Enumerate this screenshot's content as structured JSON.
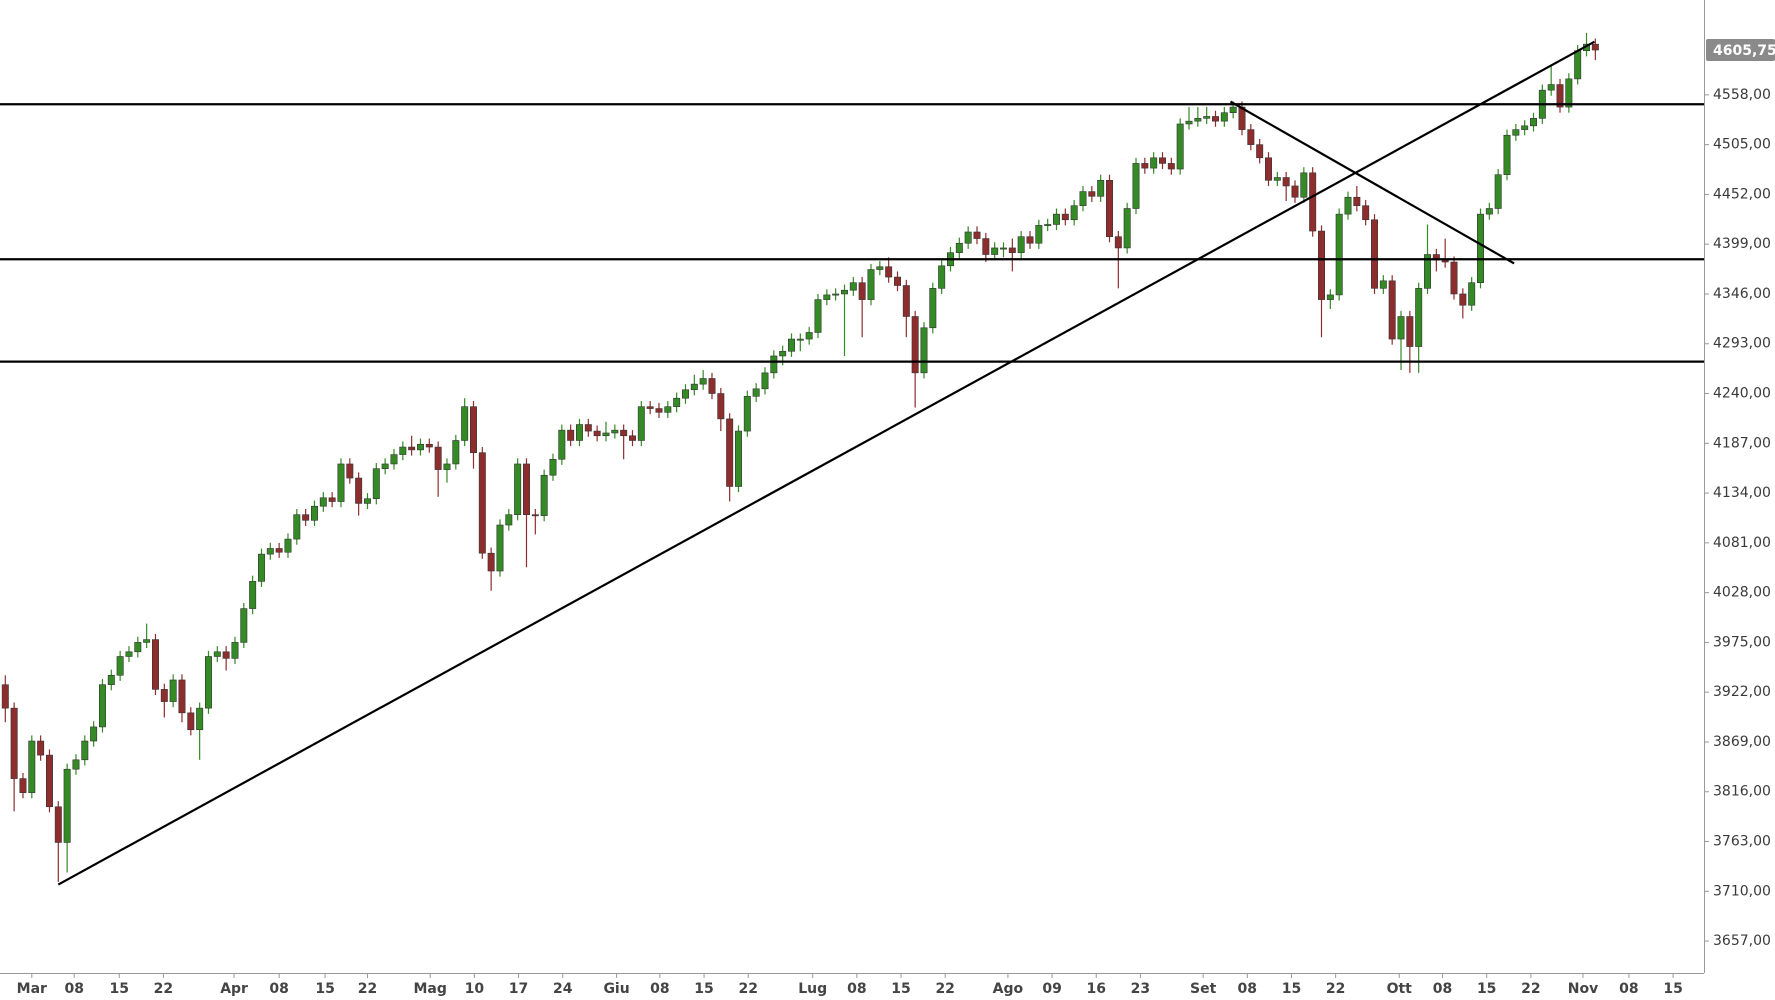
{
  "chart_data": {
    "type": "candlestick",
    "up_color": "#348a25",
    "down_color": "#8e2d2d",
    "line_color": "#000000",
    "open": [
      3930,
      3905,
      3830,
      3815,
      3870,
      3855,
      3800,
      3762,
      3840,
      3850,
      3870,
      3885,
      3930,
      3940,
      3960,
      3965,
      3975,
      3978,
      3925,
      3912,
      3935,
      3900,
      3882,
      3905,
      3960,
      3965,
      3958,
      3975,
      4011,
      4040,
      4069,
      4075,
      4071,
      4085,
      4111,
      4105,
      4120,
      4129,
      4125,
      4165,
      4150,
      4123,
      4128,
      4160,
      4165,
      4175,
      4183,
      4180,
      4186,
      4183,
      4159,
      4165,
      4190,
      4226,
      4177,
      4070,
      4051,
      4100,
      4111,
      4165,
      4111,
      4110,
      4153,
      4170,
      4201,
      4190,
      4207,
      4200,
      4195,
      4198,
      4201,
      4195,
      4190,
      4226,
      4224,
      4220,
      4226,
      4235,
      4244,
      4250,
      4256,
      4240,
      4213,
      4141,
      4200,
      4237,
      4245,
      4262,
      4280,
      4285,
      4298,
      4298,
      4305,
      4340,
      4345,
      4346,
      4350,
      4358,
      4340,
      4372,
      4375,
      4364,
      4355,
      4322,
      4262,
      4310,
      4352,
      4376,
      4390,
      4400,
      4412,
      4405,
      4388,
      4395,
      4395,
      4390,
      4407,
      4400,
      4419,
      4420,
      4431,
      4425,
      4440,
      4455,
      4450,
      4467,
      4407,
      4395,
      4437,
      4485,
      4480,
      4491,
      4485,
      4479,
      4527,
      4530,
      4533,
      4535,
      4530,
      4539,
      4545,
      4521,
      4505,
      4491,
      4467,
      4470,
      4461,
      4449,
      4475,
      4413,
      4340,
      4345,
      4431,
      4449,
      4440,
      4425,
      4352,
      4360,
      4298,
      4322,
      4290,
      4352,
      4388,
      4382,
      4380,
      4346,
      4334,
      4358,
      4431,
      4437,
      4473,
      4515,
      4521,
      4525,
      4533,
      4563,
      4569,
      4545,
      4575,
      4605,
      4612
    ],
    "high": [
      3940,
      3911,
      3836,
      3876,
      3876,
      3861,
      3806,
      3846,
      3856,
      3876,
      3891,
      3936,
      3946,
      3966,
      3971,
      3981,
      3995,
      3984,
      3931,
      3941,
      3941,
      3906,
      3911,
      3966,
      3971,
      3971,
      3981,
      4017,
      4046,
      4075,
      4081,
      4081,
      4091,
      4117,
      4117,
      4126,
      4135,
      4135,
      4171,
      4171,
      4156,
      4134,
      4166,
      4171,
      4181,
      4189,
      4195,
      4192,
      4192,
      4189,
      4171,
      4196,
      4235,
      4232,
      4183,
      4076,
      4106,
      4117,
      4171,
      4171,
      4117,
      4159,
      4176,
      4207,
      4207,
      4213,
      4213,
      4206,
      4210,
      4207,
      4207,
      4201,
      4232,
      4232,
      4230,
      4232,
      4241,
      4250,
      4260,
      4265,
      4262,
      4246,
      4219,
      4206,
      4243,
      4251,
      4268,
      4286,
      4291,
      4304,
      4304,
      4311,
      4346,
      4351,
      4352,
      4356,
      4364,
      4364,
      4378,
      4381,
      4385,
      4370,
      4361,
      4328,
      4316,
      4358,
      4382,
      4396,
      4406,
      4418,
      4418,
      4411,
      4401,
      4401,
      4405,
      4413,
      4413,
      4425,
      4426,
      4437,
      4437,
      4446,
      4461,
      4461,
      4473,
      4473,
      4413,
      4443,
      4491,
      4491,
      4497,
      4497,
      4491,
      4533,
      4545,
      4545,
      4545,
      4541,
      4545,
      4551,
      4551,
      4527,
      4511,
      4497,
      4476,
      4476,
      4467,
      4481,
      4481,
      4419,
      4351,
      4437,
      4455,
      4461,
      4446,
      4431,
      4366,
      4366,
      4328,
      4328,
      4358,
      4420,
      4394,
      4405,
      4386,
      4352,
      4364,
      4437,
      4443,
      4479,
      4521,
      4527,
      4531,
      4539,
      4569,
      4590,
      4575,
      4581,
      4611,
      4624,
      4618
    ],
    "low": [
      3890,
      3795,
      3809,
      3809,
      3849,
      3794,
      3720,
      3730,
      3834,
      3844,
      3864,
      3879,
      3924,
      3934,
      3954,
      3959,
      3969,
      3919,
      3895,
      3906,
      3890,
      3876,
      3850,
      3899,
      3954,
      3945,
      3952,
      3969,
      4005,
      4034,
      4063,
      4065,
      4065,
      4079,
      4099,
      4099,
      4114,
      4119,
      4119,
      4144,
      4110,
      4117,
      4122,
      4154,
      4159,
      4169,
      4174,
      4174,
      4177,
      4130,
      4145,
      4159,
      4184,
      4160,
      4064,
      4030,
      4045,
      4094,
      4105,
      4055,
      4090,
      4104,
      4147,
      4164,
      4184,
      4184,
      4194,
      4189,
      4189,
      4192,
      4170,
      4184,
      4184,
      4218,
      4214,
      4214,
      4220,
      4229,
      4238,
      4244,
      4234,
      4200,
      4125,
      4135,
      4194,
      4231,
      4239,
      4256,
      4270,
      4279,
      4285,
      4292,
      4299,
      4334,
      4339,
      4280,
      4344,
      4300,
      4334,
      4366,
      4358,
      4349,
      4300,
      4225,
      4256,
      4304,
      4346,
      4370,
      4384,
      4394,
      4399,
      4380,
      4382,
      4385,
      4370,
      4384,
      4394,
      4394,
      4413,
      4414,
      4419,
      4419,
      4434,
      4444,
      4444,
      4401,
      4352,
      4389,
      4431,
      4474,
      4474,
      4479,
      4473,
      4473,
      4521,
      4524,
      4527,
      4524,
      4524,
      4533,
      4515,
      4499,
      4485,
      4461,
      4461,
      4445,
      4443,
      4443,
      4407,
      4300,
      4330,
      4339,
      4425,
      4434,
      4419,
      4346,
      4346,
      4292,
      4265,
      4262,
      4262,
      4346,
      4370,
      4374,
      4340,
      4320,
      4328,
      4352,
      4425,
      4431,
      4467,
      4509,
      4515,
      4519,
      4527,
      4557,
      4539,
      4539,
      4569,
      4599,
      4595
    ],
    "close": [
      3905,
      3830,
      3815,
      3870,
      3855,
      3800,
      3762,
      3840,
      3850,
      3870,
      3885,
      3930,
      3940,
      3960,
      3965,
      3975,
      3978,
      3925,
      3912,
      3935,
      3900,
      3882,
      3905,
      3960,
      3965,
      3958,
      3975,
      4011,
      4040,
      4069,
      4075,
      4071,
      4085,
      4111,
      4105,
      4120,
      4129,
      4125,
      4165,
      4150,
      4123,
      4128,
      4160,
      4165,
      4175,
      4183,
      4180,
      4186,
      4183,
      4159,
      4165,
      4190,
      4226,
      4177,
      4070,
      4051,
      4100,
      4111,
      4165,
      4111,
      4110,
      4153,
      4170,
      4201,
      4190,
      4207,
      4200,
      4195,
      4198,
      4201,
      4195,
      4190,
      4226,
      4224,
      4220,
      4226,
      4235,
      4244,
      4250,
      4256,
      4240,
      4213,
      4141,
      4200,
      4237,
      4245,
      4262,
      4280,
      4285,
      4298,
      4298,
      4305,
      4340,
      4345,
      4346,
      4350,
      4358,
      4340,
      4372,
      4375,
      4364,
      4355,
      4322,
      4262,
      4310,
      4352,
      4376,
      4390,
      4400,
      4412,
      4405,
      4388,
      4395,
      4395,
      4390,
      4407,
      4400,
      4419,
      4420,
      4431,
      4425,
      4440,
      4455,
      4450,
      4467,
      4407,
      4395,
      4437,
      4485,
      4480,
      4491,
      4485,
      4479,
      4527,
      4530,
      4533,
      4535,
      4530,
      4539,
      4545,
      4521,
      4505,
      4491,
      4467,
      4470,
      4461,
      4449,
      4475,
      4413,
      4340,
      4345,
      4431,
      4449,
      4440,
      4425,
      4352,
      4360,
      4298,
      4322,
      4290,
      4352,
      4388,
      4382,
      4380,
      4346,
      4334,
      4358,
      4431,
      4437,
      4473,
      4515,
      4521,
      4525,
      4533,
      4563,
      4569,
      4545,
      4575,
      4605,
      4612,
      4605.75
    ],
    "xlim": [
      -0.6,
      192.3
    ],
    "xticks": [
      {
        "value": 3.0,
        "label": "Mar"
      },
      {
        "value": 7.8,
        "label": "08"
      },
      {
        "value": 12.9,
        "label": "15"
      },
      {
        "value": 17.9,
        "label": "22"
      },
      {
        "value": 25.9,
        "label": "Apr"
      },
      {
        "value": 31.0,
        "label": "08"
      },
      {
        "value": 36.2,
        "label": "15"
      },
      {
        "value": 41.0,
        "label": "22"
      },
      {
        "value": 48.1,
        "label": "Mag"
      },
      {
        "value": 53.1,
        "label": "10"
      },
      {
        "value": 58.1,
        "label": "17"
      },
      {
        "value": 63.1,
        "label": "24"
      },
      {
        "value": 69.2,
        "label": "Giu"
      },
      {
        "value": 74.1,
        "label": "08"
      },
      {
        "value": 79.1,
        "label": "15"
      },
      {
        "value": 84.1,
        "label": "22"
      },
      {
        "value": 91.4,
        "label": "Lug"
      },
      {
        "value": 96.4,
        "label": "08"
      },
      {
        "value": 101.4,
        "label": "15"
      },
      {
        "value": 106.4,
        "label": "22"
      },
      {
        "value": 113.5,
        "label": "Ago"
      },
      {
        "value": 118.5,
        "label": "09"
      },
      {
        "value": 123.5,
        "label": "16"
      },
      {
        "value": 128.5,
        "label": "23"
      },
      {
        "value": 135.6,
        "label": "Set"
      },
      {
        "value": 140.6,
        "label": "08"
      },
      {
        "value": 145.6,
        "label": "15"
      },
      {
        "value": 150.6,
        "label": "22"
      },
      {
        "value": 157.8,
        "label": "Ott"
      },
      {
        "value": 162.7,
        "label": "08"
      },
      {
        "value": 167.7,
        "label": "15"
      },
      {
        "value": 172.7,
        "label": "22"
      },
      {
        "value": 178.6,
        "label": "Nov"
      },
      {
        "value": 183.8,
        "label": "08"
      },
      {
        "value": 188.8,
        "label": "15"
      }
    ],
    "ylim": [
      3623,
      4659
    ],
    "yticks": [
      {
        "value": 3657,
        "label": "3657,00"
      },
      {
        "value": 3710,
        "label": "3710,00"
      },
      {
        "value": 3763,
        "label": "3763,00"
      },
      {
        "value": 3816,
        "label": "3816,00"
      },
      {
        "value": 3869,
        "label": "3869,00"
      },
      {
        "value": 3922,
        "label": "3922,00"
      },
      {
        "value": 3975,
        "label": "3975,00"
      },
      {
        "value": 4028,
        "label": "4028,00"
      },
      {
        "value": 4081,
        "label": "4081,00"
      },
      {
        "value": 4134,
        "label": "4134,00"
      },
      {
        "value": 4187,
        "label": "4187,00"
      },
      {
        "value": 4240,
        "label": "4240,00"
      },
      {
        "value": 4293,
        "label": "4293,00"
      },
      {
        "value": 4346,
        "label": "4346,00"
      },
      {
        "value": 4399,
        "label": "4399,00"
      },
      {
        "value": 4452,
        "label": "4452,00"
      },
      {
        "value": 4505,
        "label": "4505,00"
      },
      {
        "value": 4558,
        "label": "4558,00"
      }
    ],
    "hlines": [
      4548,
      4383,
      4274
    ],
    "trendlines": [
      {
        "x": [
          6.0,
          179.9
        ],
        "y": [
          3717.2,
          4614.6
        ]
      },
      {
        "x": [
          138.7,
          170.8
        ],
        "y": [
          4550.8,
          4378.5
        ]
      }
    ],
    "last_price": {
      "value": 4605.75,
      "label": "4605,75"
    }
  }
}
